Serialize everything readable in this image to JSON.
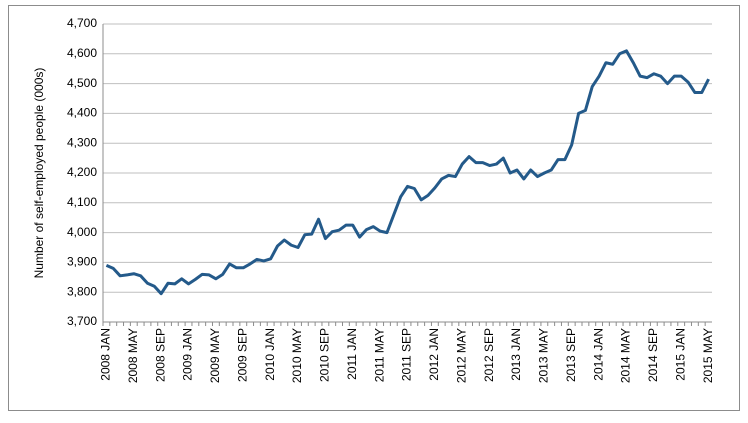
{
  "chart_data": {
    "type": "line",
    "y_label": "Number of self-employed people (000s)",
    "categories": [
      "2008 JAN",
      null,
      null,
      null,
      "2008 MAY",
      null,
      null,
      null,
      "2008 SEP",
      null,
      null,
      null,
      "2009 JAN",
      null,
      null,
      null,
      "2009 MAY",
      null,
      null,
      null,
      "2009 SEP",
      null,
      null,
      null,
      "2010 JAN",
      null,
      null,
      null,
      "2010 MAY",
      null,
      null,
      null,
      "2010 SEP",
      null,
      null,
      null,
      "2011 JAN",
      null,
      null,
      null,
      "2011 MAY",
      null,
      null,
      null,
      "2011 SEP",
      null,
      null,
      null,
      "2012 JAN",
      null,
      null,
      null,
      "2012 MAY",
      null,
      null,
      null,
      "2012 SEP",
      null,
      null,
      null,
      "2013 JAN",
      null,
      null,
      null,
      "2013 MAY",
      null,
      null,
      null,
      "2013 SEP",
      null,
      null,
      null,
      "2014 JAN",
      null,
      null,
      null,
      "2014 MAY",
      null,
      null,
      null,
      "2014 SEP",
      null,
      null,
      null,
      "2015 JAN",
      null,
      null,
      null,
      "2015 MAY"
    ],
    "series": [
      {
        "color": "#245a8a",
        "values": [
          3890,
          3880,
          3855,
          3858,
          3862,
          3855,
          3830,
          3820,
          3795,
          3830,
          3828,
          3845,
          3828,
          3843,
          3860,
          3858,
          3845,
          3860,
          3895,
          3882,
          3882,
          3895,
          3910,
          3905,
          3912,
          3955,
          3975,
          3958,
          3950,
          3993,
          3995,
          4045,
          3980,
          4003,
          4008,
          4025,
          4025,
          3985,
          4010,
          4020,
          4005,
          4000,
          4060,
          4120,
          4155,
          4148,
          4110,
          4125,
          4150,
          4180,
          4192,
          4188,
          4230,
          4255,
          4235,
          4235,
          4225,
          4230,
          4250,
          4200,
          4210,
          4180,
          4210,
          4188,
          4200,
          4210,
          4245,
          4245,
          4295,
          4400,
          4410,
          4490,
          4525,
          4570,
          4565,
          4600,
          4610,
          4570,
          4525,
          4520,
          4533,
          4525,
          4500,
          4525,
          4525,
          4505,
          4470,
          4470,
          4515
        ]
      }
    ],
    "ylim": [
      3700,
      4700
    ],
    "yticks": [
      {
        "value": 3700,
        "label": "3,700"
      },
      {
        "value": 3800,
        "label": "3,800"
      },
      {
        "value": 3900,
        "label": "3,900"
      },
      {
        "value": 4000,
        "label": "4,000"
      },
      {
        "value": 4100,
        "label": "4,100"
      },
      {
        "value": 4200,
        "label": "4,200"
      },
      {
        "value": 4300,
        "label": "4,300"
      },
      {
        "value": 4400,
        "label": "4,400"
      },
      {
        "value": 4500,
        "label": "4,500"
      },
      {
        "value": 4600,
        "label": "4,600"
      },
      {
        "value": 4700,
        "label": "4,700"
      }
    ],
    "grid": true
  }
}
